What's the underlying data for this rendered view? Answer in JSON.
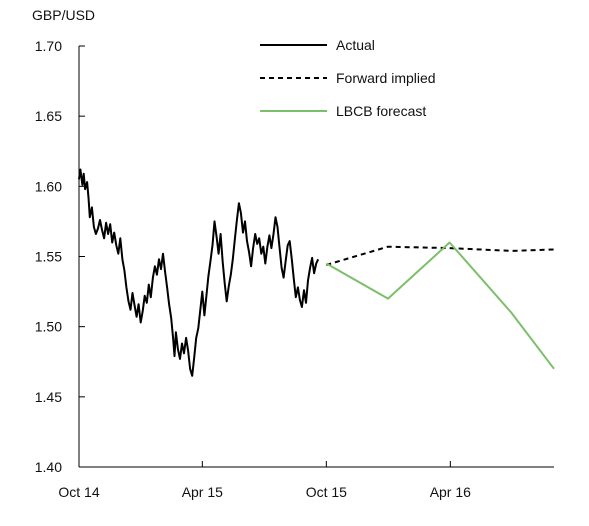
{
  "chart_data": {
    "type": "line",
    "ylabel": "GBP/USD",
    "ylim": [
      1.4,
      1.7
    ],
    "yticks": [
      "1.70",
      "1.65",
      "1.60",
      "1.55",
      "1.50",
      "1.45",
      "1.40"
    ],
    "xticks": [
      {
        "label": "Oct 14",
        "at": "2014-10-01"
      },
      {
        "label": "Apr 15",
        "at": "2015-04-01"
      },
      {
        "label": "Oct 15",
        "at": "2015-10-01"
      },
      {
        "label": "Apr 16",
        "at": "2016-04-01"
      }
    ],
    "xlim": [
      "2014-10-01",
      "2016-09-01"
    ],
    "legend_position": "top-right",
    "series": [
      {
        "name": "Actual",
        "style": "solid",
        "color": "#000000",
        "points": [
          [
            "2014-10-01",
            1.605
          ],
          [
            "2014-10-03",
            1.612
          ],
          [
            "2014-10-06",
            1.601
          ],
          [
            "2014-10-08",
            1.609
          ],
          [
            "2014-10-10",
            1.598
          ],
          [
            "2014-10-13",
            1.603
          ],
          [
            "2014-10-15",
            1.592
          ],
          [
            "2014-10-17",
            1.578
          ],
          [
            "2014-10-20",
            1.585
          ],
          [
            "2014-10-23",
            1.571
          ],
          [
            "2014-10-26",
            1.566
          ],
          [
            "2014-10-29",
            1.57
          ],
          [
            "2014-11-01",
            1.576
          ],
          [
            "2014-11-04",
            1.569
          ],
          [
            "2014-11-07",
            1.563
          ],
          [
            "2014-11-10",
            1.574
          ],
          [
            "2014-11-13",
            1.566
          ],
          [
            "2014-11-16",
            1.573
          ],
          [
            "2014-11-19",
            1.56
          ],
          [
            "2014-11-22",
            1.567
          ],
          [
            "2014-11-25",
            1.558
          ],
          [
            "2014-11-28",
            1.552
          ],
          [
            "2014-12-01",
            1.563
          ],
          [
            "2014-12-04",
            1.548
          ],
          [
            "2014-12-07",
            1.54
          ],
          [
            "2014-12-10",
            1.528
          ],
          [
            "2014-12-13",
            1.518
          ],
          [
            "2014-12-16",
            1.512
          ],
          [
            "2014-12-19",
            1.524
          ],
          [
            "2014-12-22",
            1.515
          ],
          [
            "2014-12-25",
            1.507
          ],
          [
            "2014-12-28",
            1.516
          ],
          [
            "2014-12-31",
            1.503
          ],
          [
            "2015-01-03",
            1.511
          ],
          [
            "2015-01-06",
            1.522
          ],
          [
            "2015-01-09",
            1.517
          ],
          [
            "2015-01-12",
            1.53
          ],
          [
            "2015-01-15",
            1.521
          ],
          [
            "2015-01-18",
            1.535
          ],
          [
            "2015-01-21",
            1.543
          ],
          [
            "2015-01-24",
            1.537
          ],
          [
            "2015-01-27",
            1.548
          ],
          [
            "2015-01-30",
            1.541
          ],
          [
            "2015-02-02",
            1.552
          ],
          [
            "2015-02-05",
            1.539
          ],
          [
            "2015-02-08",
            1.528
          ],
          [
            "2015-02-11",
            1.516
          ],
          [
            "2015-02-14",
            1.506
          ],
          [
            "2015-02-17",
            1.491
          ],
          [
            "2015-02-19",
            1.479
          ],
          [
            "2015-02-21",
            1.496
          ],
          [
            "2015-02-24",
            1.484
          ],
          [
            "2015-02-27",
            1.477
          ],
          [
            "2015-03-02",
            1.488
          ],
          [
            "2015-03-05",
            1.481
          ],
          [
            "2015-03-08",
            1.492
          ],
          [
            "2015-03-11",
            1.483
          ],
          [
            "2015-03-14",
            1.47
          ],
          [
            "2015-03-17",
            1.465
          ],
          [
            "2015-03-20",
            1.478
          ],
          [
            "2015-03-23",
            1.492
          ],
          [
            "2015-03-26",
            1.499
          ],
          [
            "2015-03-29",
            1.512
          ],
          [
            "2015-04-01",
            1.525
          ],
          [
            "2015-04-04",
            1.508
          ],
          [
            "2015-04-07",
            1.522
          ],
          [
            "2015-04-10",
            1.536
          ],
          [
            "2015-04-13",
            1.547
          ],
          [
            "2015-04-16",
            1.558
          ],
          [
            "2015-04-19",
            1.575
          ],
          [
            "2015-04-22",
            1.564
          ],
          [
            "2015-04-25",
            1.552
          ],
          [
            "2015-04-28",
            1.566
          ],
          [
            "2015-05-01",
            1.546
          ],
          [
            "2015-05-04",
            1.531
          ],
          [
            "2015-05-07",
            1.518
          ],
          [
            "2015-05-10",
            1.529
          ],
          [
            "2015-05-13",
            1.537
          ],
          [
            "2015-05-16",
            1.548
          ],
          [
            "2015-05-19",
            1.562
          ],
          [
            "2015-05-22",
            1.576
          ],
          [
            "2015-05-25",
            1.588
          ],
          [
            "2015-05-28",
            1.581
          ],
          [
            "2015-05-31",
            1.567
          ],
          [
            "2015-06-03",
            1.575
          ],
          [
            "2015-06-06",
            1.561
          ],
          [
            "2015-06-09",
            1.553
          ],
          [
            "2015-06-12",
            1.543
          ],
          [
            "2015-06-15",
            1.556
          ],
          [
            "2015-06-18",
            1.566
          ],
          [
            "2015-06-21",
            1.559
          ],
          [
            "2015-06-24",
            1.563
          ],
          [
            "2015-06-27",
            1.552
          ],
          [
            "2015-06-30",
            1.557
          ],
          [
            "2015-07-03",
            1.545
          ],
          [
            "2015-07-06",
            1.557
          ],
          [
            "2015-07-09",
            1.565
          ],
          [
            "2015-07-12",
            1.556
          ],
          [
            "2015-07-15",
            1.566
          ],
          [
            "2015-07-18",
            1.578
          ],
          [
            "2015-07-21",
            1.571
          ],
          [
            "2015-07-24",
            1.556
          ],
          [
            "2015-07-27",
            1.542
          ],
          [
            "2015-07-30",
            1.535
          ],
          [
            "2015-08-02",
            1.547
          ],
          [
            "2015-08-05",
            1.558
          ],
          [
            "2015-08-08",
            1.561
          ],
          [
            "2015-08-11",
            1.548
          ],
          [
            "2015-08-14",
            1.534
          ],
          [
            "2015-08-17",
            1.521
          ],
          [
            "2015-08-20",
            1.528
          ],
          [
            "2015-08-23",
            1.519
          ],
          [
            "2015-08-26",
            1.514
          ],
          [
            "2015-08-29",
            1.526
          ],
          [
            "2015-09-01",
            1.517
          ],
          [
            "2015-09-04",
            1.533
          ],
          [
            "2015-09-07",
            1.542
          ],
          [
            "2015-09-10",
            1.549
          ],
          [
            "2015-09-13",
            1.538
          ],
          [
            "2015-09-16",
            1.545
          ],
          [
            "2015-09-19",
            1.548
          ]
        ]
      },
      {
        "name": "Forward implied",
        "style": "dashed",
        "color": "#000000",
        "points": [
          [
            "2015-10-01",
            1.544
          ],
          [
            "2015-12-31",
            1.557
          ],
          [
            "2016-03-31",
            1.556
          ],
          [
            "2016-06-30",
            1.554
          ],
          [
            "2016-09-01",
            1.555
          ]
        ]
      },
      {
        "name": "LBCB forecast",
        "style": "solid",
        "color": "#7cbf6a",
        "points": [
          [
            "2015-10-01",
            1.545
          ],
          [
            "2015-12-31",
            1.52
          ],
          [
            "2016-03-31",
            1.56
          ],
          [
            "2016-06-30",
            1.51
          ],
          [
            "2016-09-01",
            1.47
          ]
        ]
      }
    ]
  }
}
